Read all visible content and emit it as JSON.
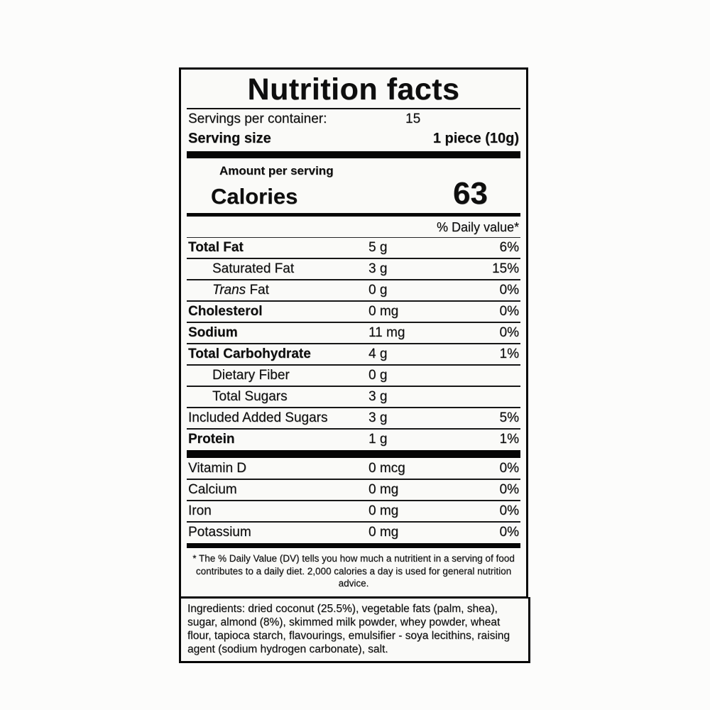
{
  "label": {
    "title": "Nutrition facts",
    "servings_per_container": {
      "label": "Servings per container:",
      "value": "15"
    },
    "serving_size": {
      "label": "Serving size",
      "value": "1 piece (10g)"
    },
    "amount_per_serving": "Amount per serving",
    "calories": {
      "label": "Calories",
      "value": "63"
    },
    "daily_value_header": "% Daily value*",
    "nutrients": [
      {
        "name": "Total Fat",
        "amount": "5 g",
        "dv": "6%"
      },
      {
        "name": "Saturated Fat",
        "amount": "3 g",
        "dv": "15%"
      },
      {
        "name_italic": "Trans",
        "name_rest": " Fat",
        "amount": "0 g",
        "dv": "0%"
      },
      {
        "name": "Cholesterol",
        "amount": "0 mg",
        "dv": "0%"
      },
      {
        "name": "Sodium",
        "amount": "11 mg",
        "dv": "0%"
      },
      {
        "name": "Total Carbohydrate",
        "amount": "4 g",
        "dv": "1%"
      },
      {
        "name": "Dietary Fiber",
        "amount": "0 g",
        "dv": ""
      },
      {
        "name": "Total Sugars",
        "amount": "3 g",
        "dv": ""
      },
      {
        "name": "Included Added Sugars",
        "amount": "3 g",
        "dv": "5%"
      },
      {
        "name": "Protein",
        "amount": "1 g",
        "dv": "1%"
      }
    ],
    "vitamins": [
      {
        "name": "Vitamin D",
        "amount": "0 mcg",
        "dv": "0%"
      },
      {
        "name": "Calcium",
        "amount": "0 mg",
        "dv": "0%"
      },
      {
        "name": "Iron",
        "amount": "0 mg",
        "dv": "0%"
      },
      {
        "name": "Potassium",
        "amount": "0 mg",
        "dv": "0%"
      }
    ],
    "footnote": "* The % Daily Value (DV) tells you how much a nutritient in a serving of food contributes to a daily diet. 2,000 calories a day is used for general nutrition advice.",
    "ingredients": "Ingredients: dried coconut (25.5%), vegetable fats (palm, shea), sugar, almond (8%), skimmed milk powder, whey powder, wheat flour, tapioca starch, flavourings, emulsifier - soya lecithins, raising agent (sodium hydrogen carbonate), salt."
  },
  "colors": {
    "text": "#141414",
    "paper": "#f3f3f1",
    "page_background": "#fcfcfb",
    "rule": "#0d0d0d"
  }
}
